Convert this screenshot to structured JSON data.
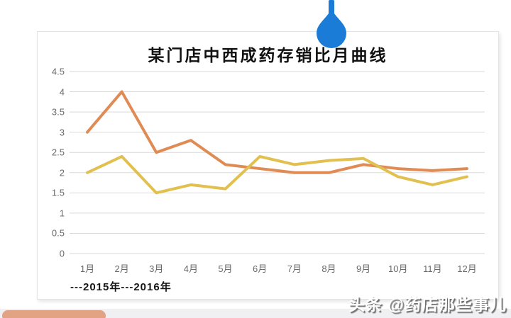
{
  "page": {
    "watermark": "头条 @药店那些事儿"
  },
  "decorations": {
    "drop_pin_color": "#1B7CD8",
    "bottom_bar_color": "#E2A284",
    "bottom_band_color": "#F0F0F2"
  },
  "chart_data": {
    "type": "line",
    "title": "某门店中西成药存销比月曲线",
    "categories": [
      "1月",
      "2月",
      "3月",
      "4月",
      "5月",
      "6月",
      "7月",
      "8月",
      "9月",
      "10月",
      "11月",
      "12月"
    ],
    "series": [
      {
        "name": "2015年",
        "color": "#E08A54",
        "values": [
          3.0,
          4.0,
          2.5,
          2.8,
          2.2,
          2.1,
          2.0,
          2.0,
          2.2,
          2.1,
          2.05,
          2.1
        ]
      },
      {
        "name": "2016年",
        "color": "#E2C04F",
        "values": [
          2.0,
          2.4,
          1.5,
          1.7,
          1.6,
          2.4,
          2.2,
          2.3,
          2.35,
          1.9,
          1.7,
          1.9
        ]
      }
    ],
    "legend_text": "---2015年---2016年",
    "legend_position": "bottom-left",
    "xlabel": "",
    "ylabel": "",
    "ylim": [
      0,
      4.5
    ],
    "ytick_step": 0.5,
    "yticks": [
      0,
      0.5,
      1,
      1.5,
      2,
      2.5,
      3,
      3.5,
      4,
      4.5
    ],
    "grid": true,
    "gridline_color": "#D9D9D9",
    "tick_label_color": "#6A6A6A"
  }
}
